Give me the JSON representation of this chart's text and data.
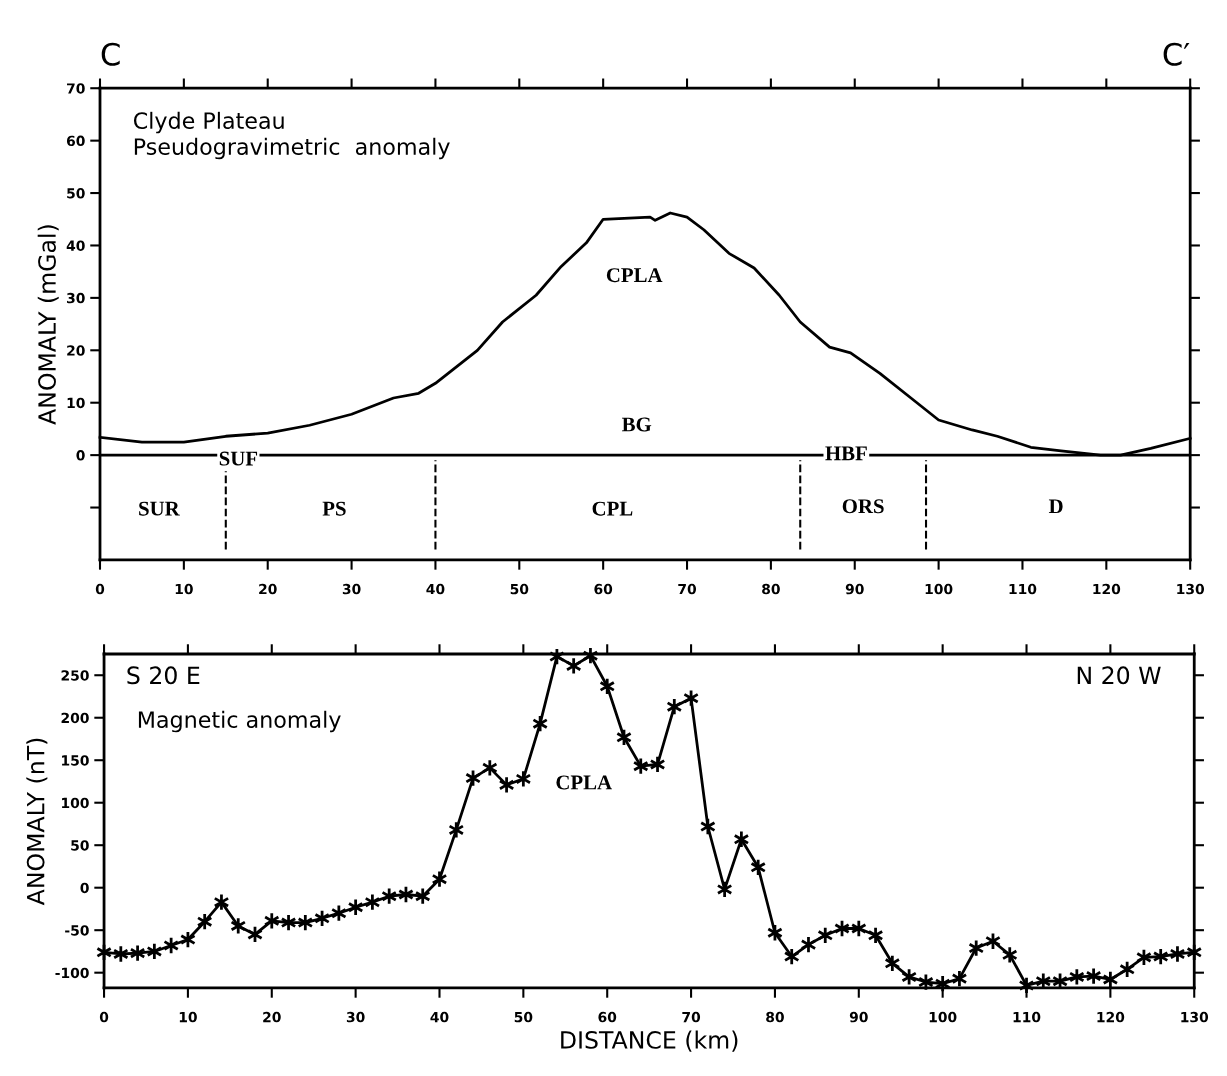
{
  "chart_data": [
    {
      "type": "line",
      "title": "Clyde Plateau",
      "subtitle": "Pseudogravimetric  anomaly",
      "ylabel": "ANOMALY (mGal)",
      "x": [
        0,
        5,
        10,
        15,
        20,
        25,
        30,
        35,
        38,
        40,
        45,
        48,
        52,
        55,
        58,
        60,
        65.6,
        66.2,
        68,
        70,
        72,
        75,
        78,
        81,
        83.5,
        87,
        89.5,
        93,
        96.7,
        100,
        104,
        107,
        111,
        114.6,
        119.3,
        121.7,
        125.3,
        130
      ],
      "series": [
        {
          "color": "#000000",
          "values": [
            3.4,
            2.5,
            2.5,
            3.6,
            4.2,
            5.7,
            7.8,
            10.9,
            11.8,
            13.7,
            20,
            25.4,
            30.5,
            36,
            40.5,
            45,
            45.4,
            44.8,
            46.2,
            45.4,
            43,
            38.5,
            35.7,
            30.5,
            25.4,
            20.6,
            19.5,
            15.6,
            10.9,
            6.7,
            4.8,
            3.6,
            1.5,
            0.8,
            0,
            0,
            1.3,
            3.2
          ]
        }
      ],
      "xlim": [
        0,
        130
      ],
      "xticks": [
        0,
        10,
        20,
        30,
        40,
        50,
        60,
        70,
        80,
        90,
        100,
        110,
        120,
        130
      ],
      "ylim": [
        -20,
        70
      ],
      "yticks": [
        {
          "value": -10,
          "label": null
        },
        0,
        10,
        20,
        30,
        40,
        50,
        60,
        70
      ],
      "grid": false,
      "marker": "none",
      "line_style": "solid",
      "legend": false,
      "ref_lines": [
        {
          "axis": "y",
          "value": 0
        },
        {
          "axis": "x",
          "value": 15,
          "line_style": "dashed"
        },
        {
          "axis": "x",
          "value": 40,
          "line_style": "dashed"
        },
        {
          "axis": "x",
          "value": 83.5,
          "line_style": "dashed"
        },
        {
          "axis": "x",
          "value": 98.5,
          "line_style": "dashed"
        }
      ],
      "annotations": [
        "C",
        "C′",
        "CPLA",
        {
          "text": "BG",
          "x": 64,
          "y": 5.5
        },
        {
          "text": "SUF",
          "x": 16.5,
          "y": -1
        },
        {
          "text": "HBF",
          "x": 89,
          "y": 0
        },
        "SUR",
        "PS",
        "CPL",
        "ORS",
        "D"
      ]
    },
    {
      "type": "line",
      "title": "Magnetic anomaly",
      "ylabel": "ANOMALY (nT)",
      "xlabel": "DISTANCE (km)",
      "x": [
        0,
        2,
        4,
        6,
        8,
        10,
        12,
        14,
        16,
        18,
        20,
        22,
        24,
        26,
        28,
        30,
        32,
        34,
        36,
        38,
        40,
        42,
        44,
        46,
        48,
        50,
        52,
        54,
        56,
        58,
        60,
        62,
        64,
        66,
        68,
        70,
        72,
        74,
        76,
        78,
        80,
        82,
        84,
        86,
        88,
        90,
        92,
        94,
        96,
        98,
        100,
        102,
        104,
        106,
        108,
        110,
        112,
        114,
        116,
        118,
        120,
        122,
        124,
        126,
        128,
        130
      ],
      "series": [
        {
          "color": "#000000",
          "values": [
            -76,
            -78,
            -77,
            -75,
            -68,
            -61,
            -40,
            -17,
            -45,
            -55,
            -39,
            -41,
            -41,
            -36,
            -30,
            -23,
            -17,
            -10,
            -8,
            -10,
            10,
            68,
            129,
            141,
            121,
            128,
            193,
            272,
            261,
            273,
            237,
            177,
            143,
            145,
            213,
            223,
            72,
            -2,
            57,
            24,
            -53,
            -81,
            -67,
            -56,
            -48,
            -48,
            -56,
            -89,
            -105,
            -111,
            -113,
            -107,
            -71,
            -63,
            -79,
            -115,
            -110,
            -110,
            -105,
            -104,
            -108,
            -96,
            -82,
            -81,
            -78,
            -76
          ]
        }
      ],
      "xlim": [
        0,
        130
      ],
      "xticks": [
        0,
        10,
        20,
        30,
        40,
        50,
        60,
        70,
        80,
        90,
        100,
        110,
        120,
        130
      ],
      "ylim": [
        -118,
        275
      ],
      "yticks": [
        -100,
        -50,
        0,
        50,
        100,
        150,
        200,
        250
      ],
      "grid": false,
      "marker": "cross",
      "line_style": "solid",
      "legend": false,
      "annotations": [
        "S 20 E",
        "N 20 W",
        "CPLA"
      ]
    }
  ]
}
